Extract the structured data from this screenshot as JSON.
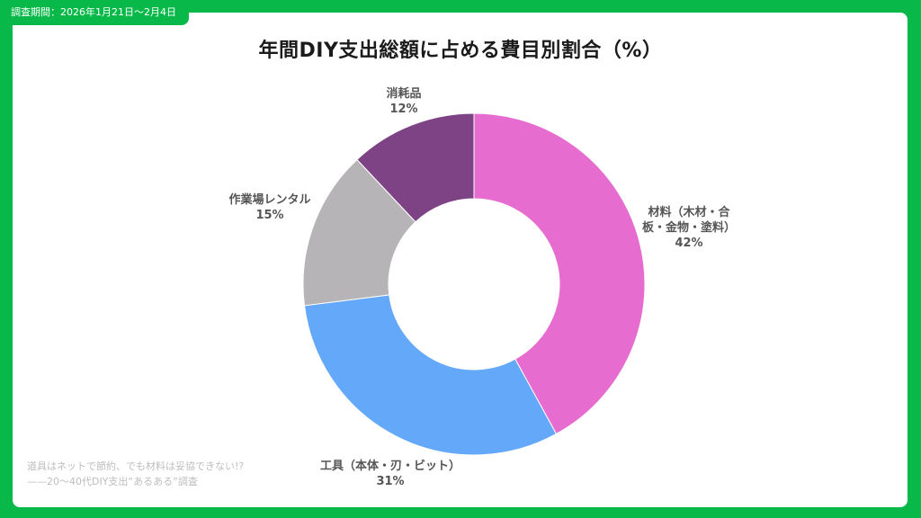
{
  "header": {
    "survey_period": "調査期間：2026年1月21日〜2月4日"
  },
  "chart_data": {
    "type": "donut",
    "title": "年間DIY支出総額に占める費目別割合（%）",
    "unit": "%",
    "slices": [
      {
        "label_lines": [
          "材料（木材・合",
          "板・金物・塗料）"
        ],
        "value": 42,
        "value_label": "42%",
        "color": "#e66ccf"
      },
      {
        "label_lines": [
          "工具（本体・刃・ビット）"
        ],
        "value": 31,
        "value_label": "31%",
        "color": "#64a8fa"
      },
      {
        "label_lines": [
          "作業場レンタル"
        ],
        "value": 15,
        "value_label": "15%",
        "color": "#b6b4b6"
      },
      {
        "label_lines": [
          "消耗品"
        ],
        "value": 12,
        "value_label": "12%",
        "color": "#7d4385"
      }
    ]
  },
  "footer": {
    "line1": "道具はネットで節約、でも材料は妥協できない!?",
    "line2": "——20〜40代DIY支出“あるある”調査"
  },
  "colors": {
    "background": "#08b94a",
    "card": "#ffffff",
    "title": "#1b1b1b",
    "label": "#555555"
  }
}
